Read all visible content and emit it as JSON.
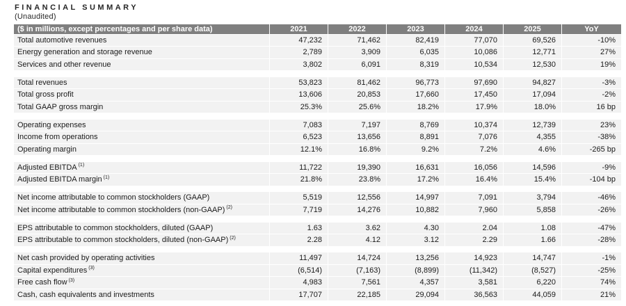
{
  "page": {
    "title": "FINANCIAL SUMMARY",
    "subtitle": "(Unaudited)"
  },
  "theme": {
    "background": "#ffffff",
    "header_bg": "#7f7f7f",
    "header_text": "#ffffff",
    "row_bg": "#f2f2f2",
    "highlight_bg": "#f2dcdb",
    "text": "#1a1a1a"
  },
  "table": {
    "header": {
      "label": "($ in millions, except percentages and per share data)",
      "years": [
        "2021",
        "2022",
        "2023",
        "2024",
        "2025"
      ],
      "yoy": "YoY"
    },
    "rows": [
      {
        "label": "Total automotive revenues",
        "values": [
          "47,232",
          "71,462",
          "82,419",
          "77,070",
          "69,526"
        ],
        "yoy": "-10%"
      },
      {
        "label": "Energy generation and storage revenue",
        "values": [
          "2,789",
          "3,909",
          "6,035",
          "10,086",
          "12,771"
        ],
        "yoy": "27%"
      },
      {
        "label": "Services and other revenue",
        "values": [
          "3,802",
          "6,091",
          "8,319",
          "10,534",
          "12,530"
        ],
        "yoy": "19%"
      },
      {
        "label": "Total revenues",
        "values": [
          "53,823",
          "81,462",
          "96,773",
          "97,690",
          "94,827"
        ],
        "yoy": "-3%"
      },
      {
        "label": "Total gross profit",
        "values": [
          "13,606",
          "20,853",
          "17,660",
          "17,450",
          "17,094"
        ],
        "yoy": "-2%"
      },
      {
        "label": "Total GAAP gross margin",
        "values": [
          "25.3%",
          "25.6%",
          "18.2%",
          "17.9%",
          "18.0%"
        ],
        "yoy": "16 bp"
      },
      {
        "label": "Operating expenses",
        "values": [
          "7,083",
          "7,197",
          "8,769",
          "10,374",
          "12,739"
        ],
        "yoy": "23%"
      },
      {
        "label": "Income from operations",
        "values": [
          "6,523",
          "13,656",
          "8,891",
          "7,076",
          "4,355"
        ],
        "yoy": "-38%"
      },
      {
        "label": "Operating margin",
        "values": [
          "12.1%",
          "16.8%",
          "9.2%",
          "7.2%",
          "4.6%"
        ],
        "yoy": "-265 bp"
      },
      {
        "label": "Adjusted EBITDA",
        "sup": "(1)",
        "values": [
          "11,722",
          "19,390",
          "16,631",
          "16,056",
          "14,596"
        ],
        "yoy": "-9%"
      },
      {
        "label": "Adjusted EBITDA margin",
        "sup": "(1)",
        "values": [
          "21.8%",
          "23.8%",
          "17.2%",
          "16.4%",
          "15.4%"
        ],
        "yoy": "-104 bp"
      },
      {
        "label": "Net income attributable to common stockholders (GAAP)",
        "values": [
          "5,519",
          "12,556",
          "14,997",
          "7,091",
          "3,794"
        ],
        "yoy": "-46%"
      },
      {
        "label": "Net income attributable to common stockholders (non-GAAP)",
        "sup": "(2)",
        "values": [
          "7,719",
          "14,276",
          "10,882",
          "7,960",
          "5,858"
        ],
        "yoy": "-26%"
      },
      {
        "label": "EPS attributable to common stockholders, diluted (GAAP)",
        "values": [
          "1.63",
          "3.62",
          "4.30",
          "2.04",
          "1.08"
        ],
        "yoy": "-47%"
      },
      {
        "label": "EPS attributable to common stockholders, diluted (non-GAAP)",
        "sup": "(2)",
        "values": [
          "2.28",
          "4.12",
          "3.12",
          "2.29",
          "1.66"
        ],
        "yoy": "-28%"
      },
      {
        "label": "Net cash provided by operating activities",
        "values": [
          "11,497",
          "14,724",
          "13,256",
          "14,923",
          "14,747"
        ],
        "yoy": "-1%"
      },
      {
        "label": "Capital expenditures",
        "sup": "(3)",
        "values": [
          "(6,514)",
          "(7,163)",
          "(8,899)",
          "(11,342)",
          "(8,527)"
        ],
        "yoy": "-25%"
      },
      {
        "label": "Free cash flow",
        "sup": "(3)",
        "values": [
          "4,983",
          "7,561",
          "4,357",
          "3,581",
          "6,220"
        ],
        "yoy": "74%"
      },
      {
        "label": "Cash, cash equivalents and investments",
        "values": [
          "17,707",
          "22,185",
          "29,094",
          "36,563",
          "44,059"
        ],
        "yoy": "21%"
      }
    ]
  }
}
